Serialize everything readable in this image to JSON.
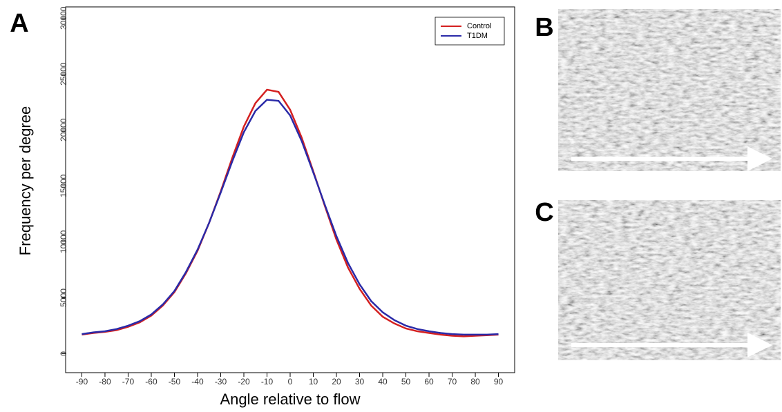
{
  "panel_labels": [
    "A",
    "B",
    "C"
  ],
  "chart_data": {
    "type": "line",
    "x_label": "Angle relative to flow",
    "y_label": "Frequency per degree",
    "x": [
      -90,
      -85,
      -80,
      -75,
      -70,
      -65,
      -60,
      -55,
      -50,
      -45,
      -40,
      -35,
      -30,
      -25,
      -20,
      -15,
      -10,
      -5,
      0,
      5,
      10,
      15,
      20,
      25,
      30,
      35,
      40,
      45,
      50,
      55,
      60,
      65,
      70,
      75,
      80,
      85,
      90
    ],
    "series": [
      {
        "name": "Control",
        "color": "#d42020",
        "values": [
          1700,
          1850,
          1950,
          2100,
          2400,
          2800,
          3400,
          4300,
          5500,
          7200,
          9200,
          11700,
          14500,
          17500,
          20300,
          22400,
          23600,
          23400,
          21800,
          19300,
          16300,
          13200,
          10200,
          7700,
          5800,
          4300,
          3300,
          2700,
          2250,
          2000,
          1850,
          1700,
          1600,
          1550,
          1600,
          1650,
          1700
        ]
      },
      {
        "name": "T1DM",
        "color": "#2a2aa8",
        "values": [
          1750,
          1900,
          2000,
          2200,
          2500,
          2900,
          3500,
          4400,
          5600,
          7300,
          9300,
          11700,
          14400,
          17200,
          19800,
          21700,
          22700,
          22600,
          21300,
          19000,
          16200,
          13300,
          10500,
          8100,
          6200,
          4700,
          3700,
          3000,
          2500,
          2200,
          2000,
          1850,
          1750,
          1700,
          1700,
          1700,
          1750
        ]
      }
    ],
    "xlim": [
      -97,
      97
    ],
    "ylim": [
      -1700,
      31000
    ],
    "xticks": [
      -90,
      -80,
      -70,
      -60,
      -50,
      -40,
      -30,
      -20,
      -10,
      0,
      10,
      20,
      30,
      40,
      50,
      60,
      70,
      80,
      90
    ],
    "yticks": [
      0,
      5000,
      10000,
      15000,
      20000,
      25000,
      30000
    ],
    "legend": "top-right"
  }
}
